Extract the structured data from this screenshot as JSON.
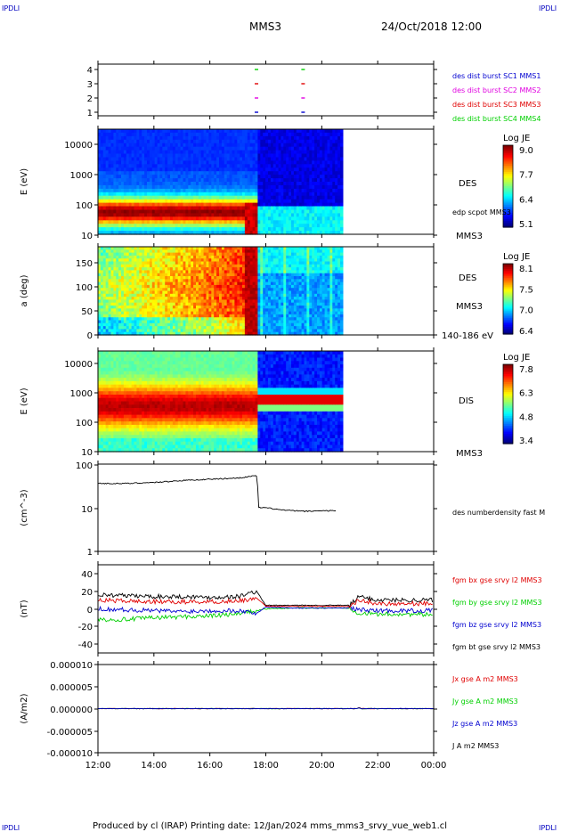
{
  "header": {
    "corner_tl": "IPDLI",
    "corner_tr": "IPDLI",
    "corner_bl": "IPDLI",
    "corner_br": "IPDLI",
    "spacecraft": "MMS3",
    "datetime": "24/Oct/2018 12:00",
    "footer": "Produced by cl (IRAP)   Printing date: 12/Jan/2024   mms_mms3_srvy_vue_web1.cl"
  },
  "colors": {
    "blue": "#0000d0",
    "magenta": "#e000e0",
    "red": "#e00000",
    "green": "#00d000",
    "black": "#000000"
  },
  "chart_data": [
    {
      "type": "scatter",
      "panel": "burst",
      "yticks": [
        "4",
        "3",
        "2",
        "1"
      ],
      "ylim": [
        0.5,
        4.5
      ],
      "legend": [
        "des dist burst SC1 MMS1",
        "des dist burst SC2 MMS2",
        "des dist burst SC3 MMS3",
        "des dist burst SC4 MMS4"
      ],
      "marks": [
        {
          "x": "17:40",
          "y": 4
        },
        {
          "x": "19:20",
          "y": 4
        },
        {
          "x": "17:40",
          "y": 3
        },
        {
          "x": "19:20",
          "y": 3
        },
        {
          "x": "17:40",
          "y": 2
        },
        {
          "x": "19:20",
          "y": 2
        },
        {
          "x": "17:40",
          "y": 1
        },
        {
          "x": "19:20",
          "y": 1
        }
      ]
    },
    {
      "type": "heatmap",
      "panel": "des_energy",
      "ylabel": "E (eV)",
      "yscale": "log",
      "yticks": [
        "10000",
        "1000",
        "100",
        "10"
      ],
      "ylim": [
        10,
        30000
      ],
      "label": "DES",
      "sublabel": "edp scpot MMS3",
      "spacecraft": "MMS3",
      "colorbar": {
        "title": "Log JE",
        "ticks": [
          "9.0",
          "7.7",
          "6.4",
          "5.1"
        ],
        "range": [
          5.1,
          9.2
        ]
      },
      "data_end": "20:45"
    },
    {
      "type": "heatmap",
      "panel": "des_pitch",
      "ylabel": "a (deg)",
      "yticks": [
        "150",
        "100",
        "50",
        "0"
      ],
      "ylim": [
        0,
        180
      ],
      "label": "DES",
      "spacecraft": "MMS3",
      "energy_range": "140-186 eV",
      "colorbar": {
        "title": "Log JE",
        "ticks": [
          "8.1",
          "7.5",
          "7.0",
          "6.4"
        ],
        "range": [
          6.4,
          8.2
        ]
      },
      "data_end": "20:45"
    },
    {
      "type": "heatmap",
      "panel": "dis_energy",
      "ylabel": "E (eV)",
      "yscale": "log",
      "yticks": [
        "10000",
        "1000",
        "100",
        "10"
      ],
      "ylim": [
        10,
        20000
      ],
      "label": "DIS",
      "spacecraft": "MMS3",
      "colorbar": {
        "title": "Log JE",
        "ticks": [
          "7.8",
          "6.3",
          "4.8",
          "3.4"
        ],
        "range": [
          3.4,
          8.0
        ]
      },
      "data_end": "20:45"
    },
    {
      "type": "line",
      "panel": "density",
      "ylabel": "(cm^-3)",
      "yscale": "log",
      "yticks": [
        "100",
        "10",
        "1"
      ],
      "ylim": [
        1,
        100
      ],
      "series": [
        {
          "name": "des numberdensity fast M",
          "x": [
            "12:00",
            "13:00",
            "14:00",
            "15:00",
            "16:00",
            "17:00",
            "17:40",
            "17:45",
            "18:00",
            "18:30",
            "19:00",
            "19:30",
            "20:00",
            "20:30"
          ],
          "values": [
            36,
            36,
            38,
            42,
            45,
            48,
            54,
            10,
            10,
            9,
            8.5,
            8.3,
            8.6,
            8.5
          ]
        }
      ]
    },
    {
      "type": "line",
      "panel": "magnetic_field",
      "ylabel": "(nT)",
      "yticks": [
        "40",
        "20",
        "0",
        "-20",
        "-40"
      ],
      "ylim": [
        -50,
        50
      ],
      "x": [
        "12:00",
        "13:00",
        "14:00",
        "15:00",
        "16:00",
        "17:00",
        "17:40",
        "18:00",
        "19:00",
        "20:00",
        "21:00",
        "21:20",
        "22:00",
        "23:00",
        "00:00"
      ],
      "series": [
        {
          "name": "fgm bx gse srvy l2 MMS3",
          "values": [
            10,
            9,
            8,
            8,
            8,
            9,
            12,
            3,
            3,
            3,
            3,
            10,
            6,
            6,
            6
          ]
        },
        {
          "name": "fgm by gse srvy l2 MMS3",
          "values": [
            -12,
            -12,
            -10,
            -9,
            -8,
            -6,
            -2,
            0,
            1,
            1,
            1,
            -5,
            -6,
            -6,
            -7
          ]
        },
        {
          "name": "fgm bz gse srvy l2 MMS3",
          "values": [
            0,
            -1,
            -2,
            -3,
            -2,
            -2,
            -5,
            2,
            1,
            1,
            1,
            -1,
            -2,
            -2,
            -2
          ]
        },
        {
          "name": "fgm bt gse srvy l2 MMS3",
          "values": [
            16,
            15,
            14,
            14,
            13,
            14,
            20,
            4,
            4,
            4,
            4,
            14,
            10,
            10,
            10
          ]
        }
      ]
    },
    {
      "type": "line",
      "panel": "current_density",
      "ylabel": "(A/m2)",
      "yticks": [
        "0.000010",
        "0.000005",
        "0.000000",
        "-0.000005",
        "-0.000010"
      ],
      "ylim": [
        -1e-05,
        1e-05
      ],
      "x": [
        "12:00",
        "17:40",
        "21:20",
        "00:00"
      ],
      "series": [
        {
          "name": "Jx gse A m2 MMS3",
          "values": [
            0,
            0,
            0,
            0
          ]
        },
        {
          "name": "Jy gse A m2 MMS3",
          "values": [
            0,
            0,
            0,
            0
          ]
        },
        {
          "name": "Jz gse A m2 MMS3",
          "values": [
            0,
            0,
            0,
            0
          ]
        },
        {
          "name": "J A m2 MMS3",
          "values": [
            0,
            0,
            0,
            0
          ]
        }
      ]
    }
  ],
  "x_axis": {
    "ticks": [
      "12:00",
      "14:00",
      "16:00",
      "18:00",
      "20:00",
      "22:00",
      "00:00"
    ],
    "range": [
      "12:00",
      "00:00"
    ]
  }
}
